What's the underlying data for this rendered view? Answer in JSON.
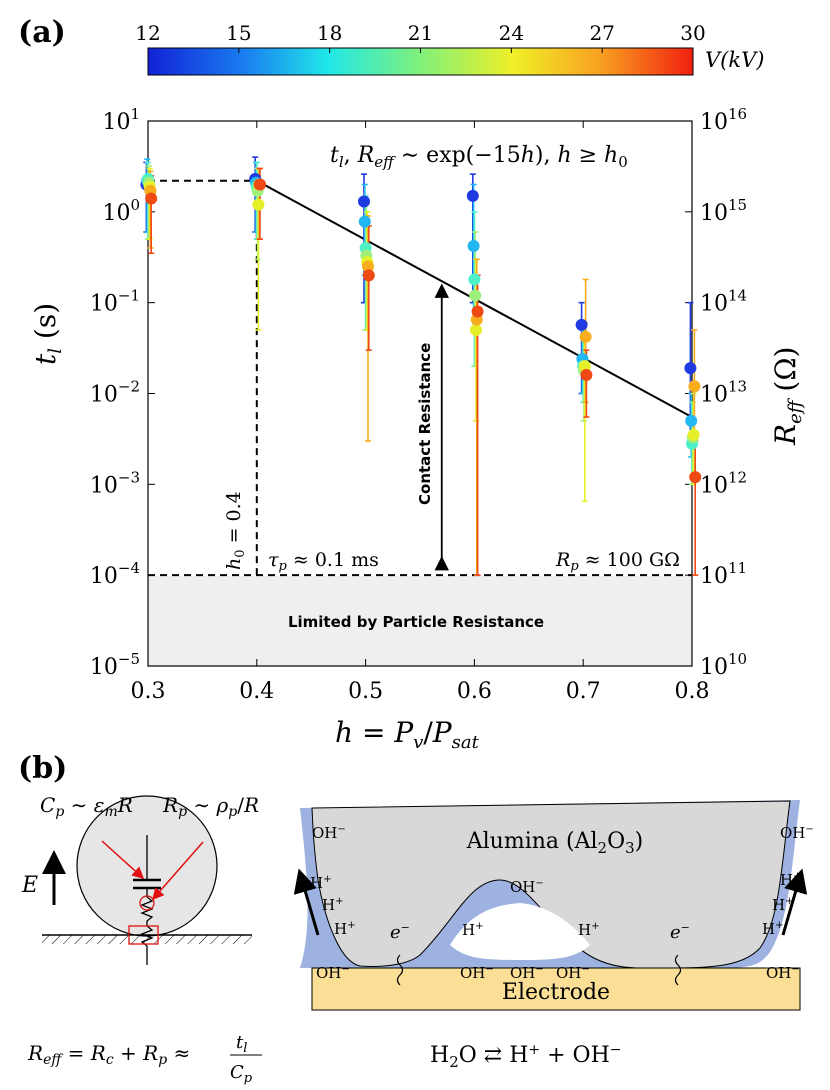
{
  "panel_a": {
    "label": "(a)",
    "colorbar": {
      "ticks": [
        "12",
        "15",
        "18",
        "21",
        "24",
        "27",
        "30"
      ],
      "label": "V(kV)"
    },
    "annotations": {
      "fit": "t_l, R_eff ~ exp(-15h), h ≥ h0",
      "h0": "h0 = 0.4",
      "tau_p": "τp ≈ 0.1 ms",
      "r_p": "Rp ≈ 100 GΩ",
      "contact": "Contact Resistance",
      "limited": "Limited by Particle Resistance"
    }
  },
  "panel_b": {
    "label": "(b)",
    "cp_eq": "Cp ~ εmR",
    "rp_eq": "Rp ~ ρp/R",
    "e_field": "E",
    "reff_eq": "Reff = Rc + Rp ≈ tl/Cp",
    "alumina": "Alumina (Al2O3)",
    "electrode": "Electrode",
    "reaction": "H2O ⇄ H+ + OH−"
  },
  "chart_data": {
    "type": "scatter",
    "title": "",
    "xlabel": "h = Pv/Psat",
    "ylabel": "t_l (s)",
    "ylabel_right": "R_eff (Ω)",
    "xlim": [
      0.3,
      0.8
    ],
    "ylim": [
      1e-05,
      10
    ],
    "ylim_right": [
      10000000000.0,
      1e+16
    ],
    "yscale": "log",
    "x_ticks": [
      "0.3",
      "0.4",
      "0.5",
      "0.6",
      "0.7",
      "0.8"
    ],
    "y_ticks": [
      "10^1",
      "10^0",
      "10^-1",
      "10^-2",
      "10^-3",
      "10^-4",
      "10^-5"
    ],
    "y_ticks_right": [
      "10^16",
      "10^15",
      "10^14",
      "10^13",
      "10^12",
      "10^11",
      "10^10"
    ],
    "colorbar": {
      "label": "V(kV)",
      "range": [
        12,
        30
      ]
    },
    "series": [
      {
        "name": "V = 12 kV",
        "color": "#1f3ae0",
        "points": [
          {
            "x": 0.3,
            "y": 2.0,
            "lo": 0.6,
            "hi": 3.5
          },
          {
            "x": 0.4,
            "y": 2.3,
            "lo": 0.6,
            "hi": 4.0
          },
          {
            "x": 0.5,
            "y": 1.3,
            "lo": 0.1,
            "hi": 2.6
          },
          {
            "x": 0.6,
            "y": 1.5,
            "lo": 0.1,
            "hi": 2.6
          },
          {
            "x": 0.7,
            "y": 0.057,
            "lo": 0.01,
            "hi": 0.1
          },
          {
            "x": 0.8,
            "y": 0.019,
            "lo": 0.003,
            "hi": 0.1
          }
        ]
      },
      {
        "name": "V = 15 kV",
        "color": "#22b6f2",
        "points": [
          {
            "x": 0.3,
            "y": 2.2,
            "lo": 0.6,
            "hi": 3.8
          },
          {
            "x": 0.4,
            "y": 2.1,
            "lo": 0.6,
            "hi": 3.5
          },
          {
            "x": 0.5,
            "y": 0.78,
            "lo": 0.2,
            "hi": 2.0
          },
          {
            "x": 0.6,
            "y": 0.42,
            "lo": 0.05,
            "hi": 2.0
          },
          {
            "x": 0.7,
            "y": 0.024,
            "lo": 0.01,
            "hi": 0.05
          },
          {
            "x": 0.8,
            "y": 0.005,
            "lo": 0.002,
            "hi": 0.01
          }
        ]
      },
      {
        "name": "V = 18 kV",
        "color": "#4ef0c8",
        "points": [
          {
            "x": 0.3,
            "y": 2.3,
            "lo": 0.5,
            "hi": 3.5
          },
          {
            "x": 0.4,
            "y": 1.9,
            "lo": 0.5,
            "hi": 3.5
          },
          {
            "x": 0.5,
            "y": 0.4,
            "lo": 0.05,
            "hi": 1.5
          },
          {
            "x": 0.6,
            "y": 0.18,
            "lo": 0.02,
            "hi": 1.0
          },
          {
            "x": 0.7,
            "y": 0.02,
            "lo": 0.008,
            "hi": 0.05
          },
          {
            "x": 0.8,
            "y": 0.0028,
            "lo": 0.001,
            "hi": 0.008
          }
        ]
      },
      {
        "name": "V = 21 kV",
        "color": "#9ef07a",
        "points": [
          {
            "x": 0.3,
            "y": 2.1,
            "lo": 0.5,
            "hi": 3.2
          },
          {
            "x": 0.4,
            "y": 1.7,
            "lo": 0.3,
            "hi": 3.0
          },
          {
            "x": 0.5,
            "y": 0.33,
            "lo": 0.05,
            "hi": 1.2
          },
          {
            "x": 0.6,
            "y": 0.12,
            "lo": 0.02,
            "hi": 0.6
          },
          {
            "x": 0.7,
            "y": 0.018,
            "lo": 0.005,
            "hi": 0.05
          },
          {
            "x": 0.8,
            "y": 0.0033,
            "lo": 0.001,
            "hi": 0.008
          }
        ]
      },
      {
        "name": "V = 24 kV",
        "color": "#e6f02a",
        "points": [
          {
            "x": 0.3,
            "y": 1.9,
            "lo": 0.5,
            "hi": 3.0
          },
          {
            "x": 0.4,
            "y": 1.2,
            "lo": 0.05,
            "hi": 2.5
          },
          {
            "x": 0.5,
            "y": 0.28,
            "lo": 0.05,
            "hi": 1.0
          },
          {
            "x": 0.6,
            "y": 0.05,
            "lo": 0.005,
            "hi": 0.3
          },
          {
            "x": 0.7,
            "y": 0.02,
            "lo": 0.00065,
            "hi": 0.06
          },
          {
            "x": 0.8,
            "y": 0.0035,
            "lo": 0.001,
            "hi": 0.01
          }
        ]
      },
      {
        "name": "V = 27 kV",
        "color": "#f7ad1c",
        "points": [
          {
            "x": 0.3,
            "y": 1.7,
            "lo": 0.4,
            "hi": 2.8
          },
          {
            "x": 0.4,
            "y": 2.0,
            "lo": 0.5,
            "hi": 3.0
          },
          {
            "x": 0.5,
            "y": 0.25,
            "lo": 0.003,
            "hi": 0.9
          },
          {
            "x": 0.6,
            "y": 0.065,
            "lo": 0.0001,
            "hi": 0.3
          },
          {
            "x": 0.7,
            "y": 0.042,
            "lo": 0.008,
            "hi": 0.18
          },
          {
            "x": 0.8,
            "y": 0.012,
            "lo": 0.003,
            "hi": 0.05
          }
        ]
      },
      {
        "name": "V = 30 kV",
        "color": "#f04a14",
        "points": [
          {
            "x": 0.3,
            "y": 1.4,
            "lo": 0.35,
            "hi": 2.5
          },
          {
            "x": 0.4,
            "y": 2.0,
            "lo": 0.5,
            "hi": 3.0
          },
          {
            "x": 0.5,
            "y": 0.2,
            "lo": 0.03,
            "hi": 0.7
          },
          {
            "x": 0.6,
            "y": 0.08,
            "lo": 0.0001,
            "hi": 0.2
          },
          {
            "x": 0.7,
            "y": 0.016,
            "lo": 0.0055,
            "hi": 0.03
          },
          {
            "x": 0.8,
            "y": 0.0012,
            "lo": 0.0001,
            "hi": 0.003
          }
        ]
      }
    ],
    "fit_line": {
      "x": [
        0.4,
        0.8
      ],
      "y": [
        2.2,
        0.0055
      ]
    },
    "plateau_line": {
      "x": [
        0.3,
        0.4
      ],
      "y": [
        2.2,
        2.2
      ]
    },
    "h0_line": {
      "x": 0.4,
      "y": [
        0.0001,
        2.2
      ]
    },
    "floor_line": {
      "y": 0.0001
    },
    "contact_arrow": {
      "x": 0.57,
      "y": [
        0.0001,
        0.15
      ]
    }
  }
}
